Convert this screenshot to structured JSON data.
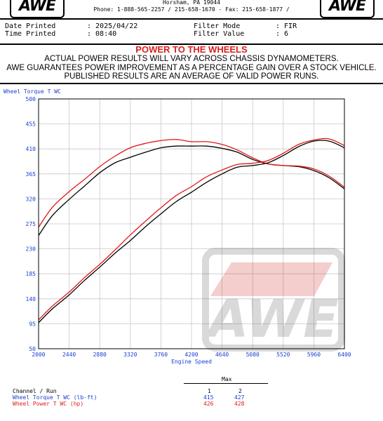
{
  "header": {
    "logo_left": "AWE",
    "logo_right": "AWE",
    "address": "Horsham, PA  19044",
    "phone": "Phone: 1-888-565-2257 / 215-658-1670 - Fax: 215-658-1877 /"
  },
  "info": {
    "date_label": "Date Printed",
    "date_value": ": 2025/04/22",
    "time_label": "Time Printed",
    "time_value": ": 08:40",
    "filter_mode_label": "Filter Mode",
    "filter_mode_value": ": FIR",
    "filter_value_label": "Filter Value",
    "filter_value_value": ": 6"
  },
  "banner": {
    "title": "POWER TO THE WHEELS",
    "line1": "ACTUAL POWER RESULTS WILL VARY ACROSS CHASSIS DYNAMOMETERS.",
    "line2": "AWE GUARANTEES POWER IMPROVEMENT AS A PERCENTAGE GAIN OVER A STOCK VEHICLE.",
    "line3": "PUBLISHED RESULTS ARE AN AVERAGE OF VALID POWER RUNS."
  },
  "watermark": "AWE",
  "colors": {
    "run1": "#000000",
    "run2": "#e01818",
    "axis_label": "#1a3fd0",
    "plot_border": "#000000"
  },
  "chart_data": {
    "type": "line",
    "ylabel": "Wheel Torque T WC",
    "xlabel": "Engine Speed",
    "xlim": [
      2000,
      6400
    ],
    "ylim": [
      50,
      500
    ],
    "x_ticks": [
      2000,
      2440,
      2880,
      3320,
      3760,
      4200,
      4640,
      5080,
      5520,
      5960,
      6400
    ],
    "y_ticks": [
      50,
      95,
      140,
      185,
      230,
      275,
      320,
      365,
      410,
      455,
      500
    ],
    "grid": true,
    "x": [
      2000,
      2200,
      2440,
      2660,
      2880,
      3100,
      3320,
      3540,
      3760,
      3980,
      4200,
      4420,
      4640,
      4860,
      5080,
      5300,
      5520,
      5740,
      5960,
      6180,
      6400
    ],
    "series": [
      {
        "name": "Wheel Torque T WC (lb-ft) - Run 1",
        "metric": "torque",
        "run": 1,
        "values": [
          254,
          290,
          319,
          343,
          367,
          385,
          395,
          404,
          412,
          415,
          415,
          415,
          411,
          404,
          391,
          383,
          380,
          378,
          371,
          358,
          338
        ]
      },
      {
        "name": "Wheel Torque T WC (lb-ft) - Run 2",
        "metric": "torque",
        "run": 2,
        "values": [
          269,
          305,
          333,
          355,
          378,
          397,
          412,
          420,
          425,
          427,
          423,
          423,
          418,
          408,
          394,
          383,
          380,
          379,
          374,
          361,
          341
        ]
      },
      {
        "name": "Wheel Power T WC (hp) - Run 1",
        "metric": "power",
        "run": 1,
        "values": [
          97,
          122,
          147,
          173,
          197,
          222,
          245,
          270,
          293,
          315,
          332,
          350,
          365,
          377,
          380,
          385,
          398,
          414,
          424,
          424,
          412
        ]
      },
      {
        "name": "Wheel Power T WC (hp) - Run 2",
        "metric": "power",
        "run": 2,
        "values": [
          102,
          127,
          152,
          178,
          202,
          228,
          255,
          280,
          304,
          326,
          342,
          360,
          372,
          382,
          384,
          389,
          402,
          418,
          426,
          428,
          416
        ]
      }
    ],
    "summary": {
      "col_header": "Max",
      "row_header": "Channel / Run",
      "runs": [
        "1",
        "2"
      ],
      "rows": [
        {
          "label": "Wheel Torque T WC (lb-ft)",
          "values": [
            "415",
            "427"
          ],
          "color": "#1a3fd0"
        },
        {
          "label": "Wheel Power T WC (hp)",
          "values": [
            "426",
            "428"
          ],
          "color": "#e01818"
        }
      ]
    }
  }
}
